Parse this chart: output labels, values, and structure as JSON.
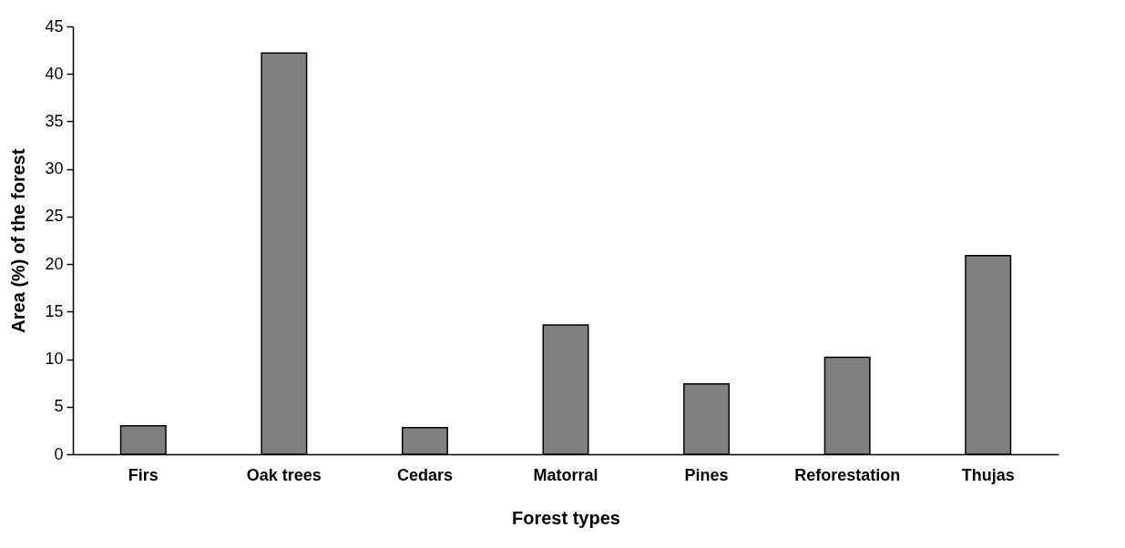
{
  "chart_data": {
    "type": "bar",
    "xlabel": "Forest types",
    "ylabel": "Area (%)  of the forest",
    "categories": [
      "Firs",
      "Oak trees",
      "Cedars",
      "Matorral",
      "Pines",
      "Reforestation",
      "Thujas"
    ],
    "values": [
      3.0,
      42.2,
      2.8,
      13.6,
      7.4,
      10.2,
      20.9
    ],
    "color": "#808080",
    "ylim": [
      0,
      45
    ],
    "yticks": [
      0,
      5,
      10,
      15,
      20,
      25,
      30,
      35,
      40,
      45
    ],
    "grid": false
  }
}
